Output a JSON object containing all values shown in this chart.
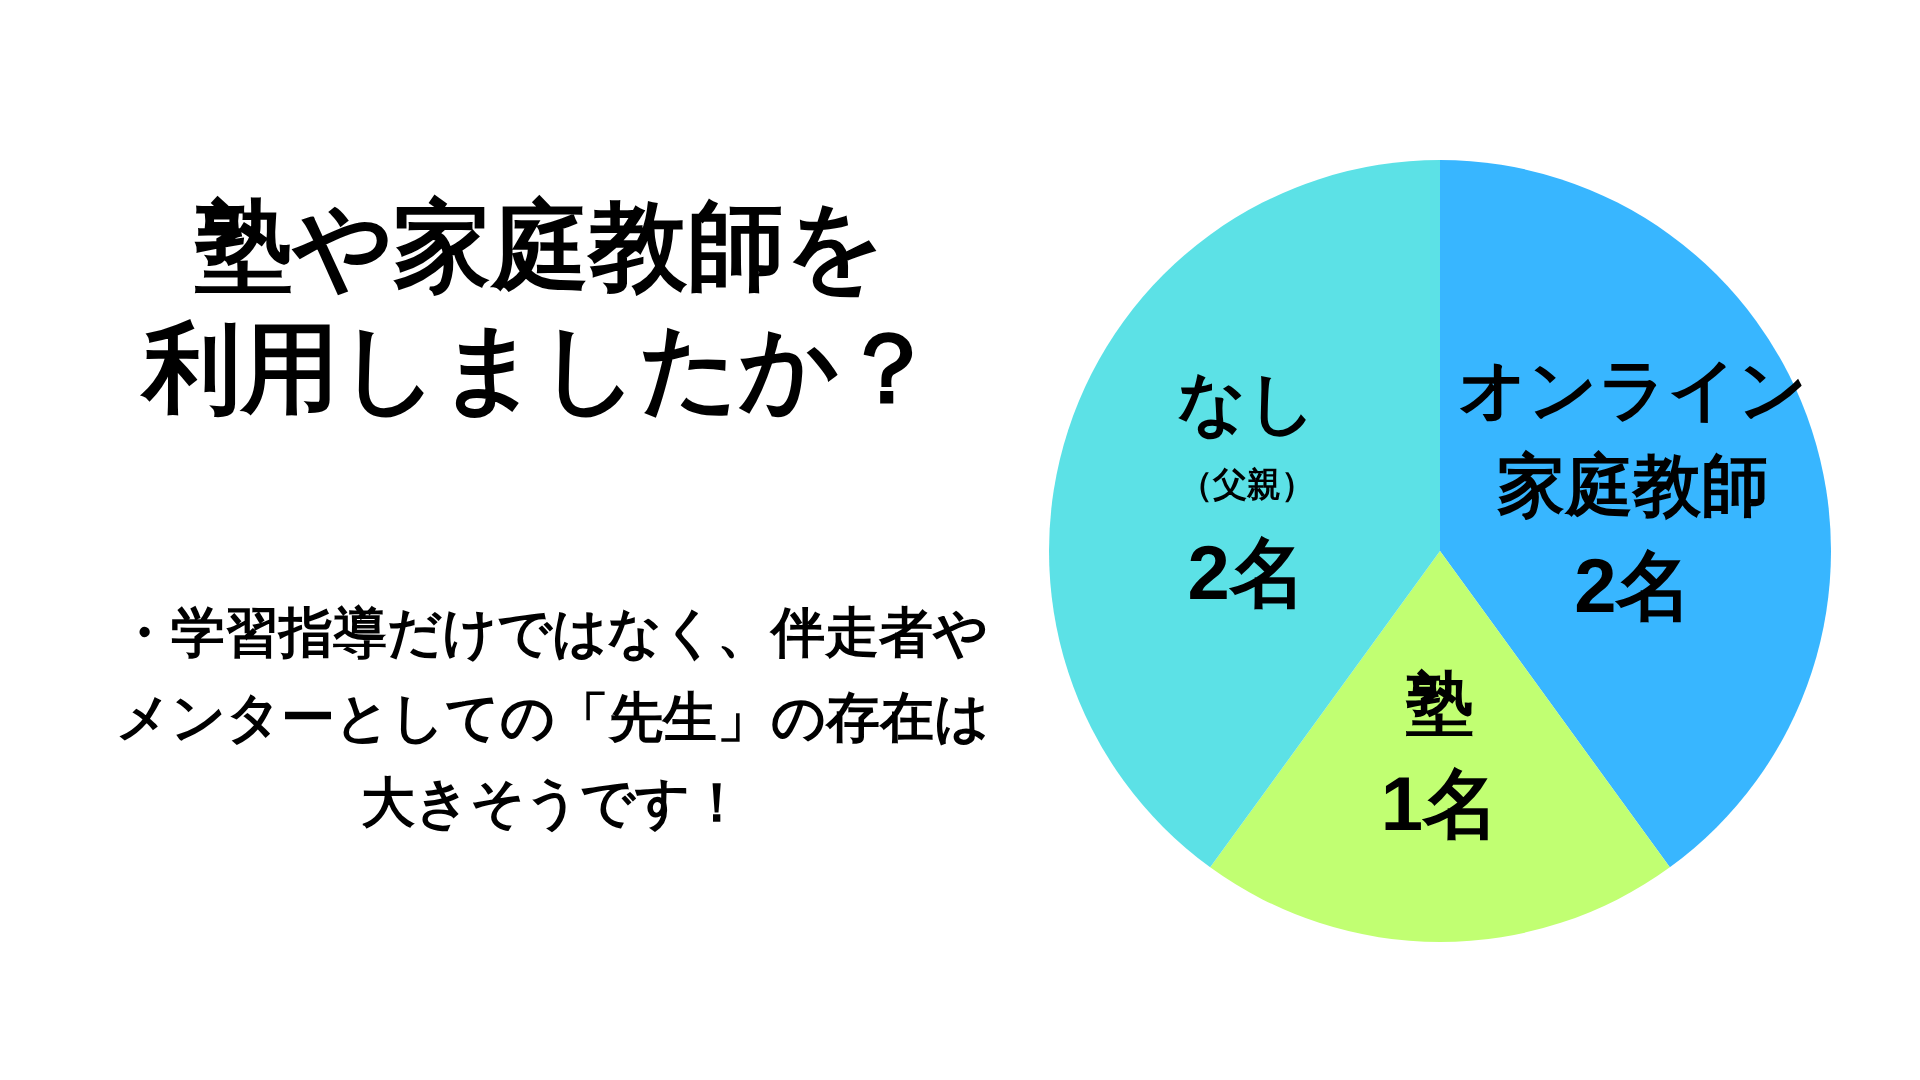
{
  "chart_data": {
    "type": "pie",
    "title": "塾や家庭教師を利用しましたか？",
    "categories": [
      "オンライン家庭教師",
      "塾",
      "なし（父親）"
    ],
    "values": [
      2,
      1,
      2
    ],
    "colors": [
      "#38b6ff",
      "#c1ff72",
      "#5ce1e6"
    ],
    "value_labels": [
      "2名",
      "1名",
      "2名"
    ],
    "annotations": [
      "・学習指導だけではなく、伴走者やメンターとしての「先生」の存在は大きそうです！"
    ]
  }
}
